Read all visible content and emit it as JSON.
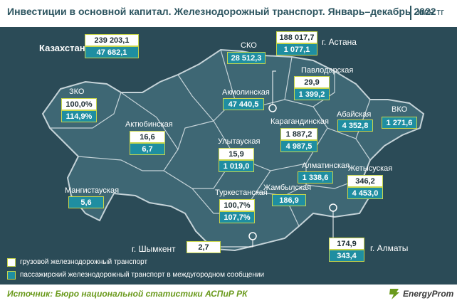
{
  "header": {
    "title": "Инвестиции в основной капитал. Железнодорожный транспорт. Январь–декабрь 2022",
    "unit": "млн тг"
  },
  "footer": {
    "source": "Источник: Бюро национальной статистики АСПиР РК",
    "logo": "EnergyProm"
  },
  "legend": {
    "cargo": "грузовой железнодорожный транспорт",
    "passenger": "пассажирский железнодорожный транспорт в междугородном сообщении"
  },
  "colors": {
    "background": "#2b4b57",
    "map_fill": "#3d6673",
    "cargo_box": "#ffffff",
    "passenger_box": "#1f8ea1",
    "box_border": "#c8d64a",
    "accent": "#6a9a1c"
  },
  "regions": {
    "kazakhstan": {
      "name": "Казахстан",
      "cargo": "239 203,1",
      "passenger": "47 682,1"
    },
    "astana": {
      "name": "г. Астана",
      "cargo": "188 017,7",
      "passenger": "1 077,1"
    },
    "sko": {
      "name": "СКО",
      "passenger": "28 512,3"
    },
    "pavlodar": {
      "name": "Павлодарская",
      "cargo": "29,9",
      "passenger": "1 399,2"
    },
    "akmola": {
      "name": "Акмолинская",
      "passenger": "47 440,5"
    },
    "zko": {
      "name": "ЗКО",
      "cargo": "100,0%",
      "passenger": "114,9%"
    },
    "aktobe": {
      "name": "Актюбинская",
      "cargo": "16,6",
      "passenger": "6,7"
    },
    "karaganda": {
      "name": "Карагандинская",
      "cargo": "1 887,2",
      "passenger": "4 987,5"
    },
    "abai": {
      "name": "Абайская",
      "passenger": "4 352,8"
    },
    "vko": {
      "name": "ВКО",
      "passenger": "1 271,6"
    },
    "ulytau": {
      "name": "Улытауская",
      "cargo": "15,9",
      "passenger": "1 019,0"
    },
    "almaty_reg": {
      "name": "Алматинская",
      "passenger": "1 338,6"
    },
    "zhetysu": {
      "name": "Жетысуская",
      "cargo": "346,2",
      "passenger": "4 453,0"
    },
    "mangystau": {
      "name": "Мангистауская",
      "passenger": "5,6"
    },
    "turkestan": {
      "name": "Туркестанская",
      "cargo": "100,7%",
      "passenger": "107,7%"
    },
    "zhambyl": {
      "name": "Жамбылская",
      "passenger": "186,9"
    },
    "shymkent": {
      "name": "г. Шымкент",
      "cargo": "2,7"
    },
    "almaty": {
      "name": "г. Алматы",
      "cargo": "174,9",
      "passenger": "343,4"
    }
  }
}
